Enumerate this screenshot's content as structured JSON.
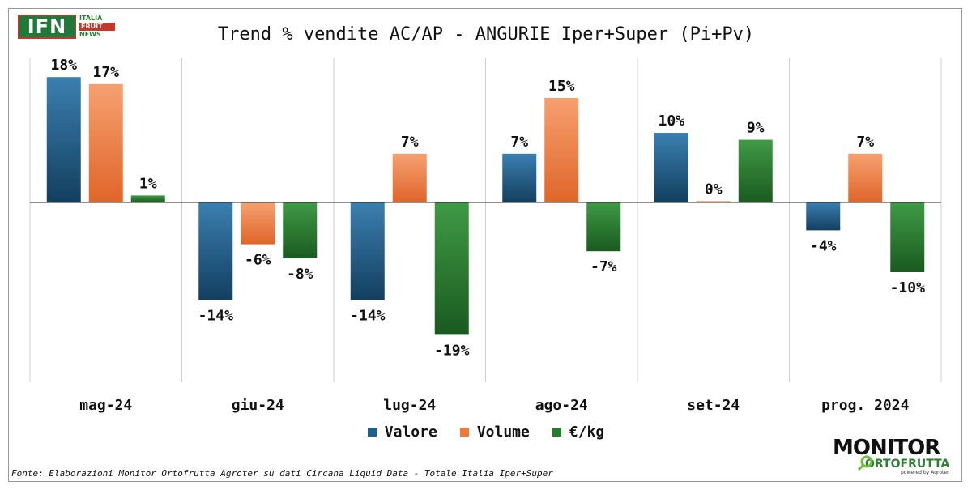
{
  "logos": {
    "ifn": {
      "main": "IFN",
      "line1": "ITALIA",
      "line2": "FRUIT",
      "line3": "NEWS"
    },
    "monitor": {
      "line1": "MONITOR",
      "line2": "ORTOFRUTTA",
      "line3": "powered by Agroter"
    }
  },
  "source": "Fonte: Elaborazioni Monitor Ortofrutta Agroter su dati Circana Liquid Data - Totale Italia Iper+Super",
  "colors": {
    "valore": "#1f5f8b",
    "volume": "#f07a3a",
    "eur_kg": "#2a7a30"
  },
  "chart_data": {
    "type": "bar",
    "title": "Trend % vendite AC/AP - ANGURIE Iper+Super (Pi+Pv)",
    "categories": [
      "mag-24",
      "giu-24",
      "lug-24",
      "ago-24",
      "set-24",
      "prog. 2024"
    ],
    "series": [
      {
        "name": "Valore",
        "values": [
          18,
          -14,
          -14,
          7,
          10,
          -4
        ],
        "labels": [
          "18%",
          "-14%",
          "-14%",
          "7%",
          "10%",
          "-4%"
        ]
      },
      {
        "name": "Volume",
        "values": [
          17,
          -6,
          7,
          15,
          0.2,
          7
        ],
        "labels": [
          "17%",
          "-6%",
          "7%",
          "15%",
          "0%",
          "7%"
        ]
      },
      {
        "name": "€/kg",
        "values": [
          1,
          -8,
          -19,
          -7,
          9,
          -10
        ],
        "labels": [
          "1%",
          "-8%",
          "-19%",
          "-7%",
          "9%",
          "-10%"
        ]
      }
    ],
    "ylim": [
      -25,
      20
    ],
    "legend_position": "bottom",
    "grid": false
  }
}
